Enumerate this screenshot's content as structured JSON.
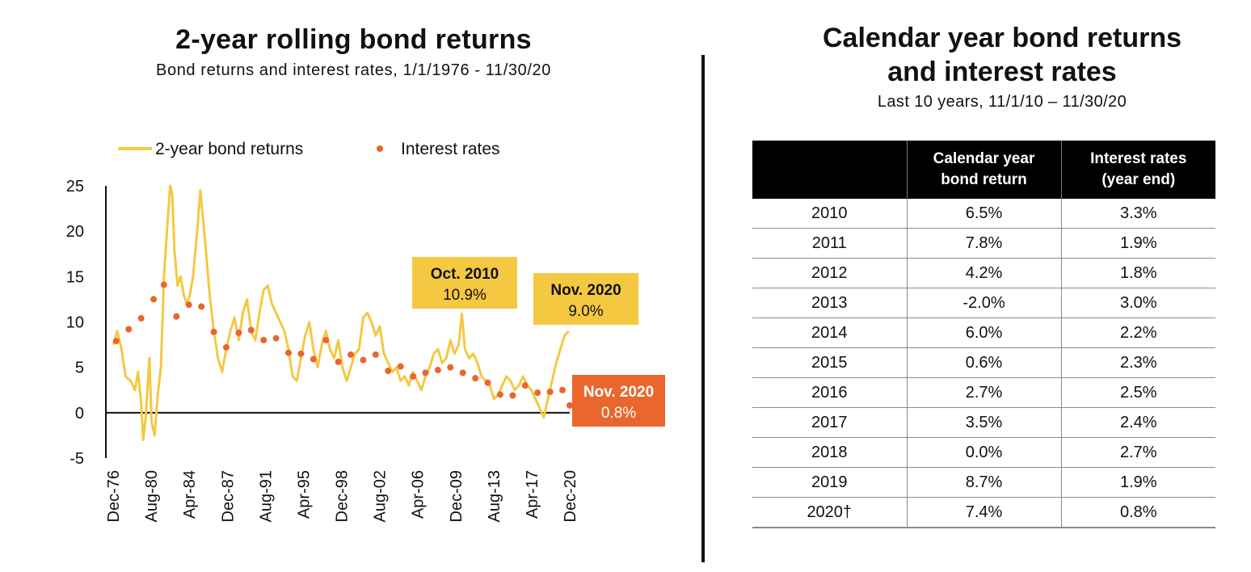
{
  "left_panel": {
    "title": "2-year rolling bond returns",
    "subtitle": "Bond returns and interest rates, 1/1/1976 - 11/30/20"
  },
  "right_panel": {
    "title_line1": "Calendar year bond returns",
    "title_line2": "and interest rates",
    "subtitle": "Last 10 years, 11/1/10 – 11/30/20"
  },
  "colors": {
    "returns_line": "#F5C842",
    "rates_dots": "#E9662C",
    "callout_yellow": "#F5C842",
    "callout_orange": "#E9662C",
    "table_header": "#000000"
  },
  "chart_data": {
    "type": "line",
    "title": "2-year rolling bond returns",
    "legend": [
      "2-year bond returns",
      "Interest rates"
    ],
    "ylim": [
      -5,
      25
    ],
    "yticks": [
      25,
      20,
      15,
      10,
      5,
      0,
      -5
    ],
    "xtick_labels": [
      "Dec-76",
      "Aug-80",
      "Apr-84",
      "Dec-87",
      "Aug-91",
      "Apr-95",
      "Dec-98",
      "Aug-02",
      "Apr-06",
      "Dec-09",
      "Aug-13",
      "Apr-17",
      "Dec-20"
    ],
    "x_range": [
      1976.9,
      2020.9
    ],
    "series": [
      {
        "name": "2-year bond returns",
        "style": "line",
        "x": [
          1976.9,
          1977.3,
          1977.7,
          1978.1,
          1978.6,
          1979.0,
          1979.3,
          1979.6,
          1979.8,
          1980.0,
          1980.2,
          1980.4,
          1980.6,
          1980.9,
          1981.2,
          1981.5,
          1981.8,
          1982.2,
          1982.4,
          1982.6,
          1982.8,
          1983.1,
          1983.4,
          1983.7,
          1984.0,
          1984.3,
          1984.6,
          1985.0,
          1985.3,
          1985.6,
          1985.9,
          1986.2,
          1986.6,
          1987.0,
          1987.4,
          1987.8,
          1988.2,
          1988.6,
          1989.0,
          1989.4,
          1989.8,
          1990.2,
          1990.6,
          1991.0,
          1991.4,
          1991.8,
          1992.2,
          1992.6,
          1993.0,
          1993.4,
          1993.8,
          1994.2,
          1994.6,
          1995.0,
          1995.4,
          1995.8,
          1996.2,
          1996.6,
          1997.0,
          1997.4,
          1997.8,
          1998.2,
          1998.6,
          1999.0,
          1999.4,
          1999.8,
          2000.2,
          2000.6,
          2001.0,
          2001.4,
          2001.8,
          2002.2,
          2002.6,
          2003.0,
          2003.4,
          2003.8,
          2004.2,
          2004.6,
          2005.0,
          2005.4,
          2005.8,
          2006.2,
          2006.6,
          2007.0,
          2007.4,
          2007.8,
          2008.2,
          2008.6,
          2009.0,
          2009.4,
          2009.8,
          2010.2,
          2010.5,
          2010.8,
          2011.2,
          2011.6,
          2012.0,
          2012.4,
          2012.8,
          2013.2,
          2013.6,
          2014.0,
          2014.4,
          2014.8,
          2015.2,
          2015.6,
          2016.0,
          2016.4,
          2016.8,
          2017.2,
          2017.6,
          2018.0,
          2018.4,
          2018.8,
          2019.2,
          2019.6,
          2020.0,
          2020.4,
          2020.8
        ],
        "values": [
          7.5,
          9.0,
          7.0,
          4.0,
          3.5,
          2.5,
          4.5,
          1.0,
          -3.0,
          -1.0,
          2.5,
          6.0,
          -1.0,
          -2.5,
          2.0,
          5.0,
          15.0,
          22.0,
          25.0,
          24.0,
          18.0,
          14.0,
          15.0,
          13.0,
          12.0,
          13.0,
          15.0,
          20.0,
          24.5,
          21.0,
          17.0,
          13.0,
          9.0,
          6.0,
          4.5,
          7.0,
          9.0,
          10.5,
          8.0,
          11.0,
          12.5,
          9.0,
          8.0,
          11.0,
          13.5,
          14.0,
          12.0,
          11.0,
          10.0,
          9.0,
          7.0,
          4.0,
          3.5,
          6.0,
          8.5,
          10.0,
          7.0,
          5.0,
          7.5,
          9.0,
          7.0,
          6.0,
          8.0,
          5.0,
          3.5,
          5.0,
          6.5,
          7.0,
          10.5,
          11.0,
          10.0,
          8.5,
          9.5,
          6.5,
          5.5,
          4.5,
          5.0,
          3.5,
          4.0,
          3.0,
          4.5,
          3.5,
          2.5,
          4.0,
          5.0,
          6.5,
          7.0,
          5.5,
          6.0,
          8.0,
          6.5,
          7.5,
          10.9,
          7.0,
          6.0,
          6.5,
          5.5,
          4.0,
          3.5,
          3.0,
          1.5,
          2.0,
          3.0,
          4.0,
          3.5,
          2.5,
          3.0,
          4.0,
          3.0,
          2.5,
          1.5,
          0.5,
          -0.5,
          1.5,
          3.5,
          5.5,
          7.0,
          8.5,
          9.0
        ]
      },
      {
        "name": "Interest rates",
        "style": "dots",
        "x": [
          1977.2,
          1978.4,
          1979.6,
          1980.8,
          1981.8,
          1983.0,
          1984.2,
          1985.4,
          1986.6,
          1987.8,
          1989.0,
          1990.2,
          1991.4,
          1992.6,
          1993.8,
          1995.0,
          1996.2,
          1997.4,
          1998.6,
          1999.8,
          2001.0,
          2002.2,
          2003.4,
          2004.6,
          2005.8,
          2007.0,
          2008.2,
          2009.4,
          2010.6,
          2011.8,
          2013.0,
          2014.2,
          2015.4,
          2016.6,
          2017.8,
          2019.0,
          2020.2,
          2020.9
        ],
        "values": [
          7.9,
          9.2,
          10.4,
          12.5,
          14.1,
          10.6,
          11.9,
          11.7,
          8.9,
          7.2,
          8.8,
          9.1,
          8.0,
          8.2,
          6.6,
          6.5,
          5.9,
          8.0,
          5.6,
          6.4,
          5.8,
          6.4,
          4.6,
          5.1,
          4.0,
          4.4,
          4.7,
          5.0,
          4.4,
          3.8,
          3.3,
          2.0,
          1.9,
          3.0,
          2.2,
          2.3,
          2.5,
          0.8
        ]
      }
    ],
    "annotations": [
      {
        "label": "Oct. 2010",
        "value": "10.9%",
        "x": 2010.8,
        "series": "2-year bond returns"
      },
      {
        "label": "Nov. 2020",
        "value": "9.0%",
        "x": 2020.9,
        "series": "2-year bond returns"
      },
      {
        "label": "Nov. 2020",
        "value": "0.8%",
        "x": 2020.9,
        "series": "Interest rates"
      }
    ]
  },
  "table": {
    "headers": [
      {
        "line1": "",
        "line2": ""
      },
      {
        "line1": "Calendar year",
        "line2": "bond return"
      },
      {
        "line1": "Interest rates",
        "line2": "(year end)"
      }
    ],
    "rows": [
      {
        "year": "2010",
        "bond_return": "6.5%",
        "interest_rate": "3.3%"
      },
      {
        "year": "2011",
        "bond_return": "7.8%",
        "interest_rate": "1.9%"
      },
      {
        "year": "2012",
        "bond_return": "4.2%",
        "interest_rate": "1.8%"
      },
      {
        "year": "2013",
        "bond_return": "-2.0%",
        "interest_rate": "3.0%"
      },
      {
        "year": "2014",
        "bond_return": "6.0%",
        "interest_rate": "2.2%"
      },
      {
        "year": "2015",
        "bond_return": "0.6%",
        "interest_rate": "2.3%"
      },
      {
        "year": "2016",
        "bond_return": "2.7%",
        "interest_rate": "2.5%"
      },
      {
        "year": "2017",
        "bond_return": "3.5%",
        "interest_rate": "2.4%"
      },
      {
        "year": "2018",
        "bond_return": "0.0%",
        "interest_rate": "2.7%"
      },
      {
        "year": "2019",
        "bond_return": "8.7%",
        "interest_rate": "1.9%"
      },
      {
        "year": "2020†",
        "bond_return": "7.4%",
        "interest_rate": "0.8%"
      }
    ]
  }
}
